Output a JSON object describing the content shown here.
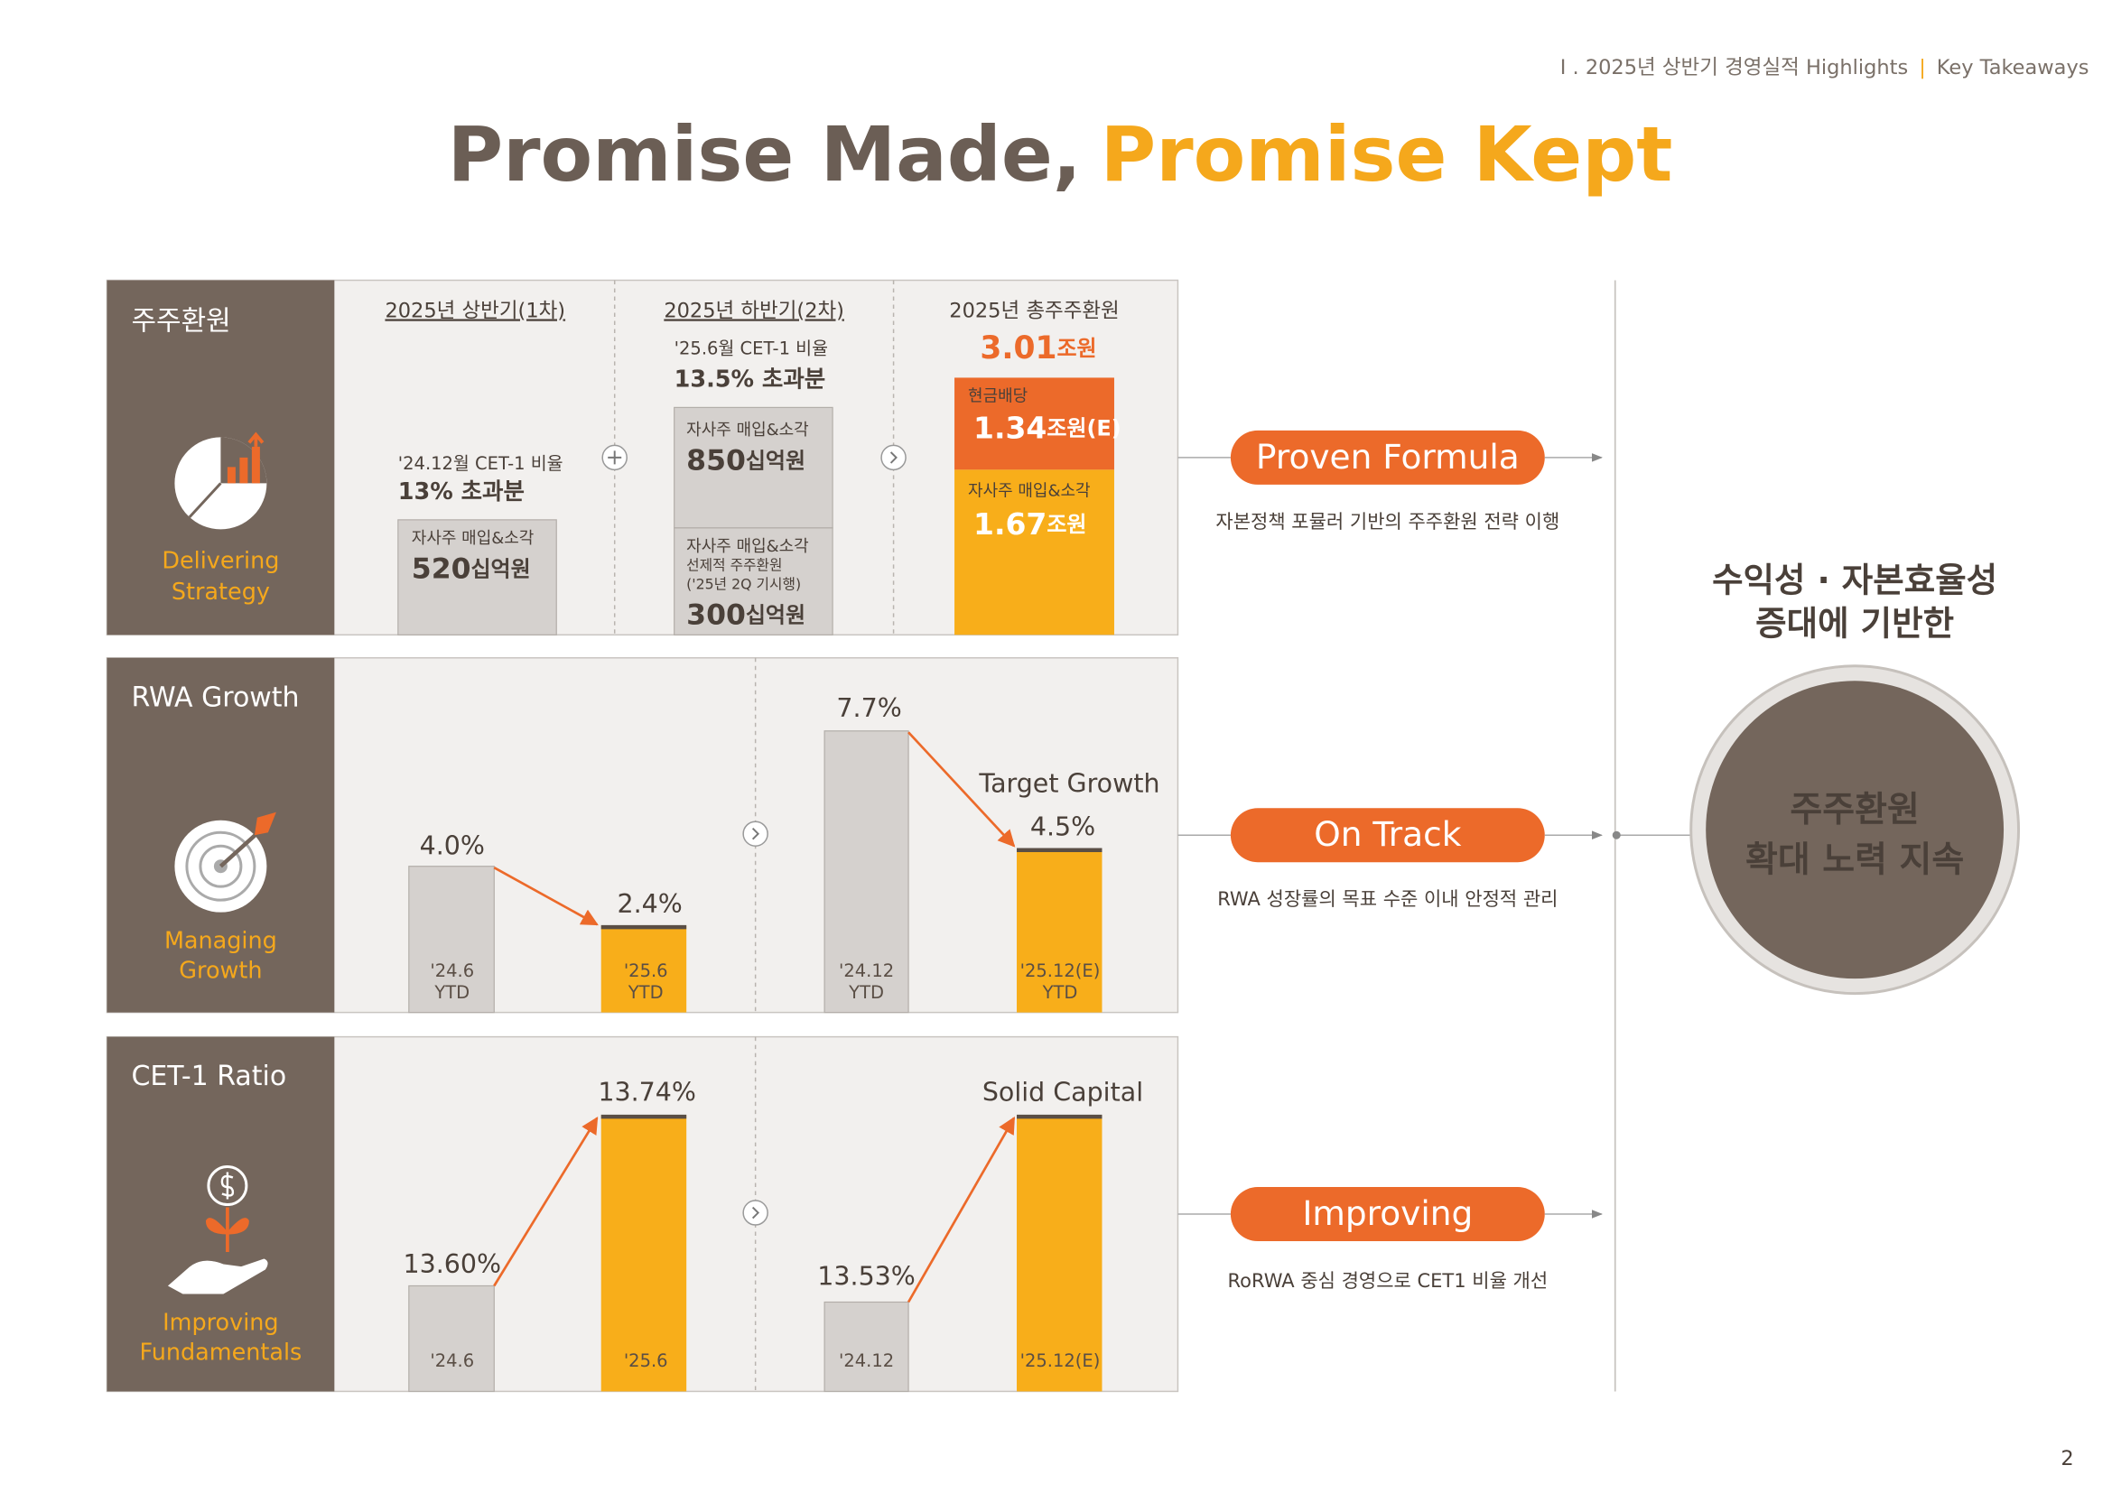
{
  "header": {
    "breadcrumb": "I . 2025년 상반기 경영실적 Highlights",
    "separator": "|",
    "section": "Key Takeaways"
  },
  "title": {
    "part1": "Promise Made,",
    "part2": "Promise Kept"
  },
  "rows": [
    {
      "label": "주주환원",
      "caption": [
        "Delivering",
        "Strategy"
      ],
      "first": {
        "heading": "2025년 상반기(1차)",
        "note": "'24.12월 CET-1 비율",
        "excess": "13% 초과분",
        "box": {
          "label": "자사주 매입&소각",
          "value": "520",
          "unit": "십억원"
        }
      },
      "second": {
        "heading": "2025년 하반기(2차)",
        "note": "'25.6월 CET-1 비율",
        "excess": "13.5% 초과분",
        "boxes": [
          {
            "label_lines": [
              "자사주 매입&소각"
            ],
            "value": "850",
            "unit": "십억원"
          },
          {
            "label_lines": [
              "자사주 매입&소각",
              "선제적 주주환원",
              "('25년 2Q 기시행)"
            ],
            "value": "300",
            "unit": "십억원"
          }
        ]
      },
      "total": {
        "heading": "2025년 총주주환원",
        "value": "3.01",
        "unit": "조원",
        "segments": [
          {
            "label": "현금배당",
            "value": "1.34",
            "unit": "조원(E)"
          },
          {
            "label": "자사주 매입&소각",
            "value": "1.67",
            "unit": "조원"
          }
        ]
      },
      "outcome": {
        "title": "Proven Formula",
        "description": "자본정책 포뮬러 기반의 주주환원 전략 이행"
      }
    },
    {
      "label": "RWA Growth",
      "caption": [
        "Managing",
        "Growth"
      ],
      "bars": [
        {
          "value_label": "4.0%",
          "period": "'24.6",
          "basis": "YTD"
        },
        {
          "value_label": "2.4%",
          "period": "'25.6",
          "basis": "YTD"
        },
        {
          "value_label": "7.7%",
          "period": "'24.12",
          "basis": "YTD"
        },
        {
          "value_label": "4.5%",
          "period": "'25.12(E)",
          "basis": "YTD"
        }
      ],
      "annotation": "Target Growth",
      "outcome": {
        "title": "On Track",
        "description": "RWA 성장률의 목표 수준 이내 안정적 관리"
      }
    },
    {
      "label": "CET-1 Ratio",
      "caption": [
        "Improving",
        "Fundamentals"
      ],
      "bars": [
        {
          "value_label": "13.60%",
          "period": "'24.6"
        },
        {
          "value_label": "13.74%",
          "period": "'25.6"
        },
        {
          "value_label": "13.53%",
          "period": "'24.12"
        },
        {
          "period": "'25.12(E)"
        }
      ],
      "annotation": "Solid Capital",
      "outcome": {
        "title": "Improving",
        "description": "RoRWA 중심 경영으로 CET1 비율 개선"
      }
    }
  ],
  "conclusion": {
    "lines": [
      "수익성 · 자본효율성",
      "증대에 기반한"
    ]
  },
  "circle": {
    "lines": [
      "주주환원",
      "확대 노력 지속"
    ]
  },
  "page_number": "2"
}
